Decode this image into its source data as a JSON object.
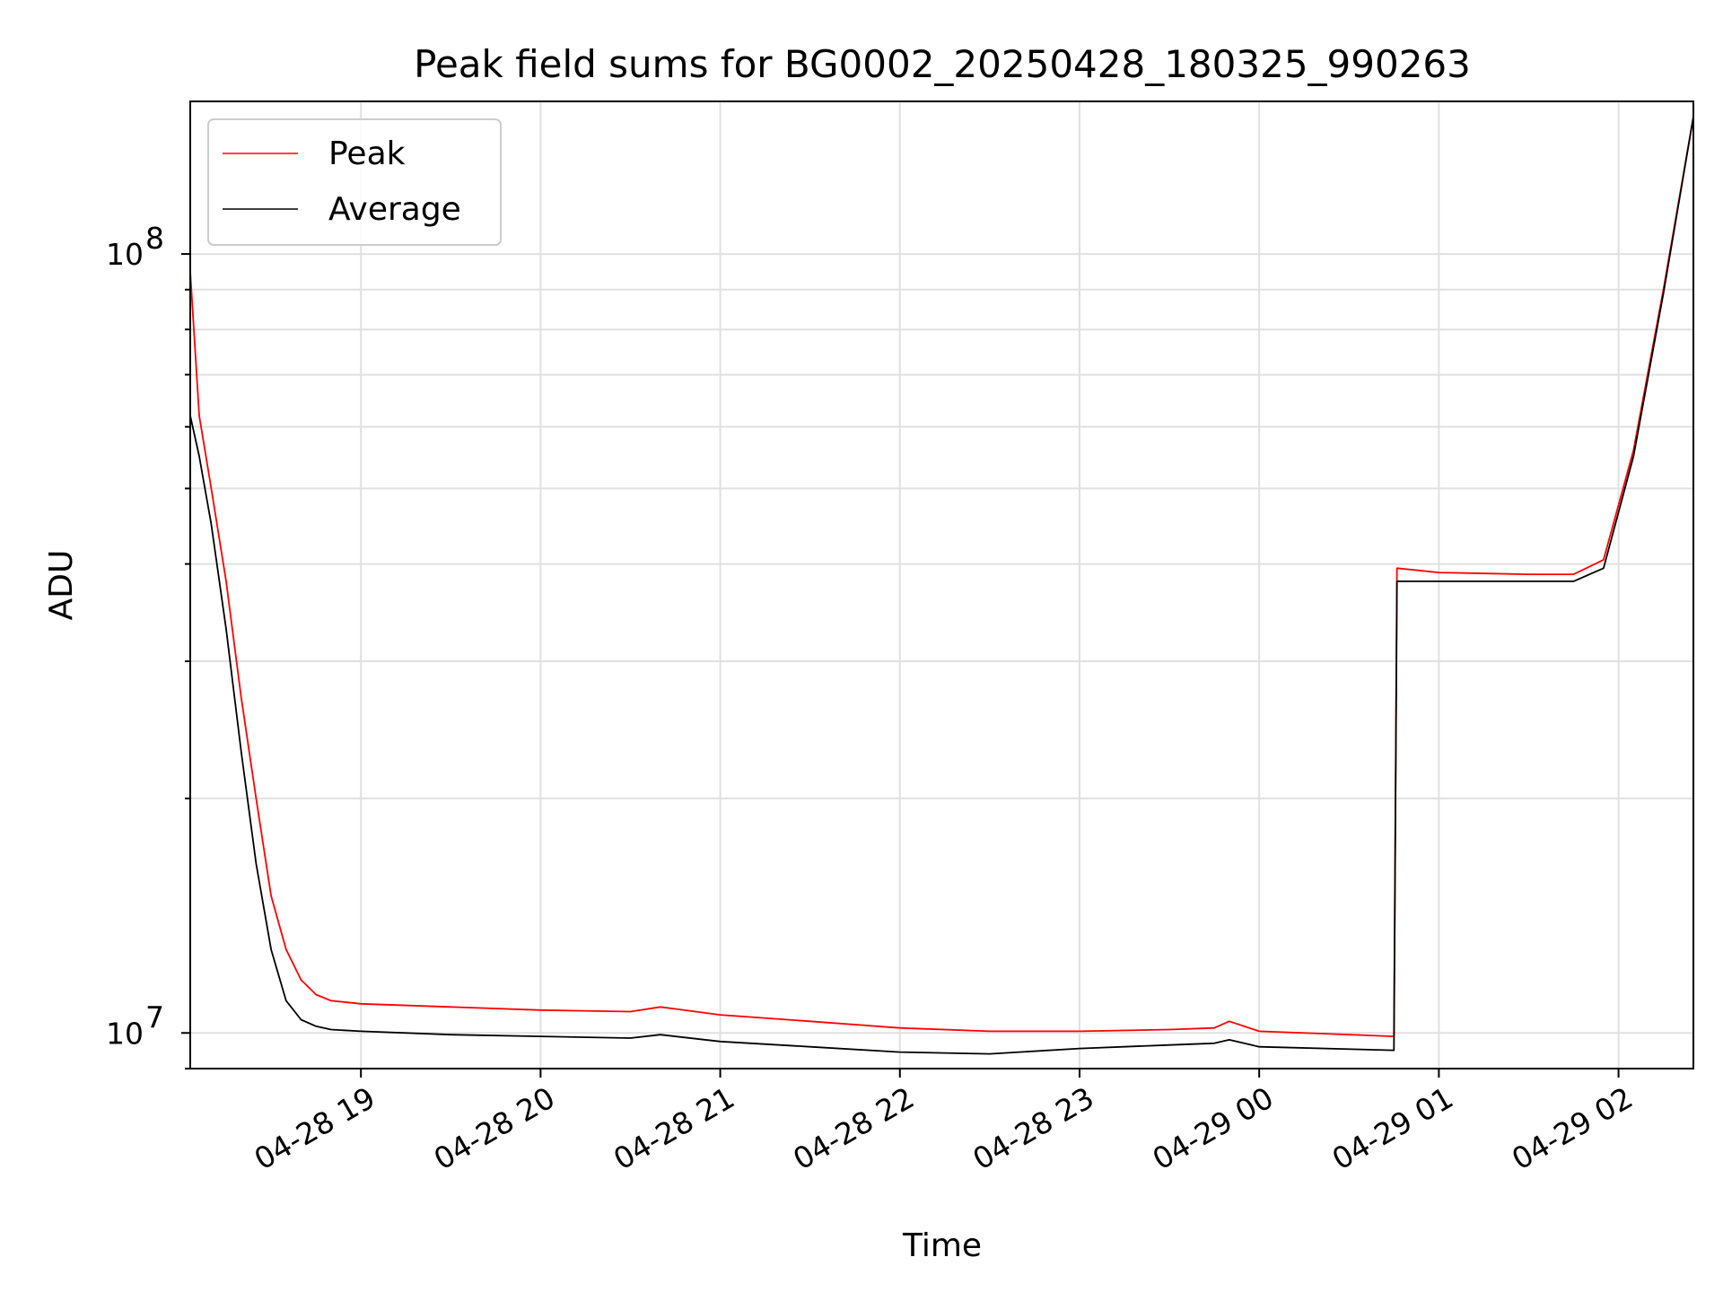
{
  "chart_data": {
    "type": "line",
    "title": "Peak field sums for BG0002_20250428_180325_990263",
    "xlabel": "Time",
    "ylabel": "ADU",
    "yscale": "log",
    "ylim": [
      9000000,
      157000000
    ],
    "xlim": [
      "04-28 18:03",
      "04-29 02:25"
    ],
    "x_tick_labels": [
      "04-28 19",
      "04-28 20",
      "04-28 21",
      "04-28 22",
      "04-28 23",
      "04-29 00",
      "04-29 01",
      "04-29 02"
    ],
    "y_tick_labels": [
      {
        "value": 10000000,
        "label": "10",
        "exponent": "7"
      },
      {
        "value": 100000000,
        "label": "10",
        "exponent": "8"
      }
    ],
    "grid": true,
    "legend_position": "top-left",
    "series": [
      {
        "name": "Peak",
        "color": "#ff0000",
        "x": [
          "04-28 18:03",
          "04-28 18:06",
          "04-28 18:10",
          "04-28 18:15",
          "04-28 18:20",
          "04-28 18:25",
          "04-28 18:30",
          "04-28 18:35",
          "04-28 18:40",
          "04-28 18:45",
          "04-28 18:50",
          "04-28 19:00",
          "04-28 19:30",
          "04-28 20:00",
          "04-28 20:30",
          "04-28 20:40",
          "04-28 21:00",
          "04-28 21:30",
          "04-28 22:00",
          "04-28 22:30",
          "04-28 23:00",
          "04-28 23:30",
          "04-28 23:45",
          "04-28 23:50",
          "04-29 00:00",
          "04-29 00:45",
          "04-29 00:46",
          "04-29 01:00",
          "04-29 01:30",
          "04-29 01:45",
          "04-29 01:55",
          "04-29 02:05",
          "04-29 02:15",
          "04-29 02:25"
        ],
        "y": [
          95000000,
          62000000,
          50000000,
          38000000,
          27000000,
          20000000,
          15000000,
          12800000,
          11700000,
          11200000,
          11000000,
          10900000,
          10800000,
          10700000,
          10650000,
          10800000,
          10550000,
          10350000,
          10150000,
          10050000,
          10050000,
          10100000,
          10150000,
          10350000,
          10050000,
          9900000,
          39500000,
          39000000,
          38800000,
          38800000,
          40500000,
          56000000,
          90000000,
          150000000
        ]
      },
      {
        "name": "Average",
        "color": "#000000",
        "x": [
          "04-28 18:03",
          "04-28 18:06",
          "04-28 18:10",
          "04-28 18:15",
          "04-28 18:20",
          "04-28 18:25",
          "04-28 18:30",
          "04-28 18:35",
          "04-28 18:40",
          "04-28 18:45",
          "04-28 18:50",
          "04-28 19:00",
          "04-28 19:30",
          "04-28 20:00",
          "04-28 20:30",
          "04-28 20:40",
          "04-28 21:00",
          "04-28 21:30",
          "04-28 22:00",
          "04-28 22:30",
          "04-28 23:00",
          "04-28 23:30",
          "04-28 23:45",
          "04-28 23:50",
          "04-29 00:00",
          "04-29 00:45",
          "04-29 00:46",
          "04-29 01:00",
          "04-29 01:30",
          "04-29 01:45",
          "04-29 01:55",
          "04-29 02:05",
          "04-29 02:15",
          "04-29 02:25"
        ],
        "y": [
          62000000,
          55000000,
          45000000,
          33000000,
          23000000,
          16500000,
          12800000,
          11000000,
          10400000,
          10200000,
          10100000,
          10050000,
          9950000,
          9900000,
          9850000,
          9950000,
          9750000,
          9600000,
          9450000,
          9400000,
          9550000,
          9650000,
          9700000,
          9800000,
          9600000,
          9500000,
          38000000,
          38000000,
          38000000,
          38000000,
          39500000,
          55000000,
          89000000,
          150000000
        ]
      }
    ]
  }
}
